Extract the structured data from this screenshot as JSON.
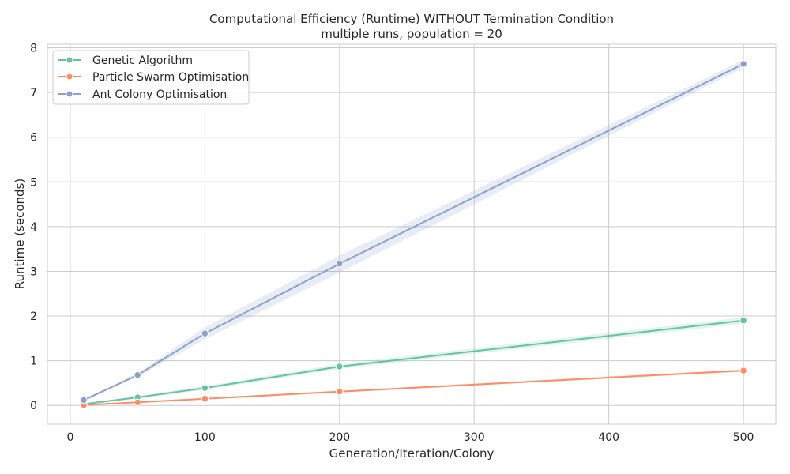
{
  "chart_data": {
    "type": "line",
    "title": "Computational Efficiency (Runtime) WITHOUT Termination Condition",
    "subtitle": "multiple runs, population = 20",
    "xlabel": "Generation/Iteration/Colony",
    "ylabel": "Runtime (seconds)",
    "x": [
      10,
      50,
      100,
      200,
      500
    ],
    "xlim": [
      -17,
      524
    ],
    "ylim": [
      -0.42,
      8.08
    ],
    "xticks": [
      0,
      100,
      200,
      300,
      400,
      500
    ],
    "yticks": [
      0,
      1,
      2,
      3,
      4,
      5,
      6,
      7,
      8
    ],
    "grid": true,
    "legend_position": "top-left",
    "series": [
      {
        "name": "Genetic Algorithm",
        "color": "#66c2a5",
        "values": [
          0.03,
          0.18,
          0.39,
          0.87,
          1.9
        ],
        "band_lower": [
          0.02,
          0.15,
          0.35,
          0.82,
          1.83
        ],
        "band_upper": [
          0.04,
          0.21,
          0.43,
          0.93,
          1.97
        ]
      },
      {
        "name": "Particle Swarm Optimisation",
        "color": "#fc8d62",
        "values": [
          0.01,
          0.07,
          0.15,
          0.31,
          0.78
        ],
        "band_lower": [
          0.005,
          0.06,
          0.13,
          0.29,
          0.75
        ],
        "band_upper": [
          0.02,
          0.08,
          0.17,
          0.33,
          0.81
        ]
      },
      {
        "name": "Ant Colony Optimisation",
        "color": "#8da0cb",
        "values": [
          0.12,
          0.68,
          1.61,
          3.17,
          7.64
        ],
        "band_lower": [
          0.1,
          0.64,
          1.48,
          2.97,
          7.56
        ],
        "band_upper": [
          0.14,
          0.72,
          1.75,
          3.35,
          7.73
        ]
      }
    ]
  }
}
